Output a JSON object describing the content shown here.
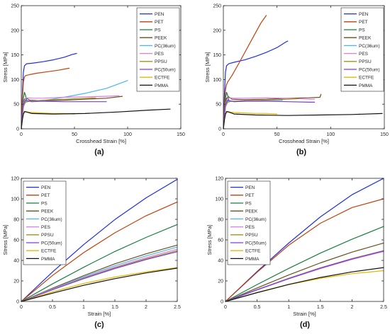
{
  "figure": {
    "colors": {
      "PEN": "#1f2ee0",
      "PET": "#c2410c",
      "PS": "#15803d",
      "PEEK": "#6b4f1d",
      "PC(36um)": "#4cb7e8",
      "PES": "#e07be6",
      "PPSU": "#9a9a12",
      "PC(50um)": "#7c3aed",
      "ECTFE": "#e6b800",
      "PMMA": "#111111"
    }
  },
  "chart_data": [
    {
      "panel_label": "(a)",
      "type": "line",
      "xlabel": "Crosshead Strain [%]",
      "ylabel": "Stress [MPa]",
      "xlim": [
        0,
        150
      ],
      "ylim": [
        0,
        250
      ],
      "xticks": [
        0,
        50,
        100,
        150
      ],
      "yticks": [
        0,
        50,
        100,
        150,
        200,
        250
      ],
      "xtick_labels": [
        "0",
        "50",
        "100",
        "150"
      ],
      "ytick_labels": [
        "0",
        "50",
        "100",
        "150",
        "200",
        "250"
      ],
      "grid": false,
      "legend": "top-right",
      "series": [
        {
          "name": "PEN",
          "x": [
            0,
            1,
            2,
            3,
            5,
            10,
            20,
            30,
            40,
            48,
            52
          ],
          "y": [
            0,
            70,
            115,
            128,
            132,
            133,
            136,
            140,
            145,
            151,
            153
          ]
        },
        {
          "name": "PET",
          "x": [
            0,
            1,
            2,
            3,
            4,
            8,
            15,
            25,
            35,
            45
          ],
          "y": [
            0,
            60,
            95,
            105,
            108,
            110,
            113,
            116,
            119,
            123
          ]
        },
        {
          "name": "PS",
          "x": [
            0,
            1,
            2,
            3,
            4,
            5
          ],
          "y": [
            0,
            35,
            62,
            74,
            68,
            58
          ]
        },
        {
          "name": "PEEK",
          "x": [
            0,
            1,
            2,
            3,
            5,
            8,
            20,
            40,
            60,
            80,
            95
          ],
          "y": [
            0,
            30,
            52,
            60,
            62,
            58,
            57,
            58,
            60,
            62,
            66
          ]
        },
        {
          "name": "PC(36um)",
          "x": [
            0,
            1,
            2,
            4,
            6,
            10,
            20,
            40,
            60,
            80,
            100
          ],
          "y": [
            0,
            28,
            48,
            56,
            56,
            55,
            57,
            64,
            72,
            82,
            98
          ]
        },
        {
          "name": "PES",
          "x": [
            0,
            1,
            2,
            4,
            6,
            10,
            20,
            40,
            60,
            80,
            92
          ],
          "y": [
            0,
            30,
            52,
            62,
            63,
            62,
            62,
            64,
            65,
            66,
            67
          ]
        },
        {
          "name": "PPSU",
          "x": [
            0,
            1,
            2,
            4,
            8,
            20,
            40,
            60,
            70
          ],
          "y": [
            0,
            25,
            45,
            54,
            56,
            58,
            60,
            62,
            63
          ]
        },
        {
          "name": "PC(50um)",
          "x": [
            0,
            1,
            2,
            4,
            6,
            10,
            20,
            40,
            60,
            80
          ],
          "y": [
            0,
            28,
            50,
            58,
            57,
            55,
            56,
            55,
            55,
            55
          ]
        },
        {
          "name": "ECTFE",
          "x": [
            0,
            1,
            2,
            4,
            6,
            10,
            20,
            30,
            40,
            50
          ],
          "y": [
            0,
            20,
            30,
            35,
            34,
            33,
            32,
            31,
            31,
            30
          ]
        },
        {
          "name": "PMMA",
          "x": [
            0,
            1,
            2,
            3,
            5,
            10,
            30,
            60,
            90,
            120,
            140
          ],
          "y": [
            0,
            18,
            30,
            35,
            34,
            31,
            30,
            31,
            34,
            38,
            40
          ]
        }
      ]
    },
    {
      "panel_label": "(b)",
      "type": "line",
      "xlabel": "Crosshead Strain [%]",
      "ylabel": "Stress [MPa]",
      "xlim": [
        0,
        150
      ],
      "ylim": [
        0,
        250
      ],
      "xticks": [
        0,
        50,
        100,
        150
      ],
      "yticks": [
        0,
        50,
        100,
        150,
        200,
        250
      ],
      "xtick_labels": [
        "0",
        "50",
        "100",
        "150"
      ],
      "ytick_labels": [
        "0",
        "50",
        "100",
        "150",
        "200",
        "250"
      ],
      "grid": false,
      "legend": "top-right",
      "series": [
        {
          "name": "PEN",
          "x": [
            0,
            1,
            2,
            3,
            5,
            10,
            20,
            30,
            40,
            50,
            58,
            60
          ],
          "y": [
            0,
            70,
            115,
            128,
            132,
            135,
            140,
            147,
            155,
            165,
            176,
            178
          ]
        },
        {
          "name": "PET",
          "x": [
            0,
            1,
            2,
            3,
            4,
            8,
            15,
            25,
            35,
            40
          ],
          "y": [
            0,
            50,
            80,
            90,
            95,
            108,
            135,
            175,
            215,
            230
          ]
        },
        {
          "name": "PS",
          "x": [
            0,
            1,
            2,
            3,
            4,
            5
          ],
          "y": [
            0,
            35,
            62,
            74,
            68,
            58
          ]
        },
        {
          "name": "PEEK",
          "x": [
            0,
            1,
            2,
            3,
            5,
            8,
            20,
            40,
            60,
            80,
            90,
            91
          ],
          "y": [
            0,
            30,
            52,
            62,
            65,
            60,
            59,
            60,
            62,
            63,
            64,
            70
          ]
        },
        {
          "name": "PC(36um)",
          "x": [
            0,
            1,
            2,
            4,
            6,
            10,
            20,
            40,
            55
          ],
          "y": [
            0,
            28,
            48,
            56,
            56,
            55,
            56,
            58,
            58
          ]
        },
        {
          "name": "PES",
          "x": [
            0,
            1,
            2,
            4,
            6,
            10,
            20,
            40,
            60,
            80,
            85
          ],
          "y": [
            0,
            30,
            52,
            62,
            63,
            62,
            62,
            63,
            62,
            60,
            60
          ]
        },
        {
          "name": "PPSU",
          "x": [
            0,
            1,
            2,
            4,
            8,
            20,
            40,
            60,
            70
          ],
          "y": [
            0,
            25,
            45,
            54,
            56,
            57,
            58,
            60,
            61
          ]
        },
        {
          "name": "PC(50um)",
          "x": [
            0,
            1,
            2,
            4,
            6,
            10,
            20,
            40,
            60,
            80,
            85
          ],
          "y": [
            0,
            28,
            50,
            58,
            57,
            55,
            56,
            56,
            55,
            54,
            54
          ]
        },
        {
          "name": "ECTFE",
          "x": [
            0,
            1,
            2,
            4,
            6,
            10,
            20,
            30,
            40,
            50
          ],
          "y": [
            0,
            20,
            30,
            35,
            34,
            33,
            32,
            31,
            31,
            30
          ]
        },
        {
          "name": "PMMA",
          "x": [
            0,
            1,
            2,
            3,
            5,
            10,
            30,
            60,
            90,
            120,
            148
          ],
          "y": [
            0,
            18,
            30,
            35,
            34,
            30,
            28,
            27,
            28,
            29,
            31
          ]
        }
      ]
    },
    {
      "panel_label": "(c)",
      "type": "line",
      "xlabel": "Strain [%]",
      "ylabel": "Stress [MPa]",
      "xlim": [
        0,
        2.5
      ],
      "ylim": [
        0,
        120
      ],
      "xticks": [
        0,
        0.5,
        1,
        1.5,
        2,
        2.5
      ],
      "yticks": [
        0,
        20,
        40,
        60,
        80,
        100,
        120
      ],
      "xtick_labels": [
        "0",
        "0.5",
        "1",
        "1.5",
        "2",
        "2.5"
      ],
      "ytick_labels": [
        "0",
        "20",
        "40",
        "60",
        "80",
        "100",
        "120"
      ],
      "grid": false,
      "legend": "top-left",
      "series": [
        {
          "name": "PEN",
          "x": [
            0,
            0.5,
            1,
            1.5,
            2,
            2.5
          ],
          "y": [
            0,
            28.7,
            55.4,
            79.8,
            101,
            119
          ]
        },
        {
          "name": "PET",
          "x": [
            0,
            0.5,
            1,
            1.5,
            2,
            2.5
          ],
          "y": [
            0,
            25.3,
            47.6,
            66.9,
            83.5,
            97
          ]
        },
        {
          "name": "PS",
          "x": [
            0,
            0.5,
            1,
            1.5,
            2,
            2.5
          ],
          "y": [
            0,
            17.1,
            33.3,
            48.7,
            62.4,
            75
          ]
        },
        {
          "name": "PEEK",
          "x": [
            0,
            0.5,
            1,
            1.5,
            2,
            2.5
          ],
          "y": [
            0,
            12.9,
            25.2,
            36.7,
            46.4,
            55
          ]
        },
        {
          "name": "PC(36um)",
          "x": [
            0,
            0.5,
            1,
            1.5,
            2,
            2.5
          ],
          "y": [
            0,
            12.3,
            24.1,
            34.9,
            44.4,
            53
          ]
        },
        {
          "name": "PES",
          "x": [
            0,
            0.5,
            1,
            1.5,
            2,
            2.5
          ],
          "y": [
            0,
            11.9,
            23.2,
            33.5,
            42.6,
            51
          ]
        },
        {
          "name": "PPSU",
          "x": [
            0,
            0.5,
            1,
            1.5,
            2,
            2.5
          ],
          "y": [
            0,
            11.6,
            22.7,
            32.7,
            41.6,
            49.5
          ]
        },
        {
          "name": "PC(50um)",
          "x": [
            0,
            0.5,
            1,
            1.5,
            2,
            2.5
          ],
          "y": [
            0,
            11.4,
            22.2,
            32,
            40.8,
            48.5
          ]
        },
        {
          "name": "ECTFE",
          "x": [
            0,
            0.5,
            1,
            1.5,
            2,
            2.5
          ],
          "y": [
            0,
            9.3,
            17.5,
            23.8,
            28.8,
            33
          ]
        },
        {
          "name": "PMMA",
          "x": [
            0,
            0.5,
            1,
            1.5,
            2,
            2.5
          ],
          "y": [
            0,
            8.1,
            15.7,
            22.2,
            27.8,
            32.5
          ]
        }
      ]
    },
    {
      "panel_label": "(d)",
      "type": "line",
      "xlabel": "Strain [%]",
      "ylabel": "Stress [MPa]",
      "xlim": [
        0,
        2.5
      ],
      "ylim": [
        0,
        120
      ],
      "xticks": [
        0,
        0.5,
        1,
        1.5,
        2,
        2.5
      ],
      "yticks": [
        0,
        20,
        40,
        60,
        80,
        100,
        120
      ],
      "xtick_labels": [
        "0",
        "0.5",
        "1",
        "1.5",
        "2",
        "2.5"
      ],
      "ytick_labels": [
        "0",
        "20",
        "40",
        "60",
        "80",
        "100",
        "120"
      ],
      "grid": false,
      "legend": "top-left",
      "series": [
        {
          "name": "PEN",
          "x": [
            0,
            0.5,
            1,
            1.5,
            2,
            2.5
          ],
          "y": [
            0,
            29.2,
            56.9,
            82.4,
            104,
            120
          ]
        },
        {
          "name": "PET",
          "x": [
            0,
            0.5,
            1,
            1.5,
            2,
            2.5
          ],
          "y": [
            0,
            28.5,
            54.8,
            76.2,
            91.5,
            100
          ]
        },
        {
          "name": "PS",
          "x": [
            0,
            0.5,
            1,
            1.5,
            2,
            2.5
          ],
          "y": [
            0,
            16.5,
            32.2,
            47.1,
            60.6,
            73
          ]
        },
        {
          "name": "PEEK",
          "x": [
            0,
            0.5,
            1,
            1.5,
            2,
            2.5
          ],
          "y": [
            0,
            13.2,
            25.8,
            37.6,
            48.1,
            57
          ]
        },
        {
          "name": "PC(36um)",
          "x": [
            0,
            0.5,
            1,
            1.5,
            2,
            2.5
          ],
          "y": [
            0,
            11.4,
            22.2,
            32.2,
            41.2,
            49
          ]
        },
        {
          "name": "PES",
          "x": [
            0,
            0.5,
            1,
            1.5,
            2,
            2.5
          ],
          "y": [
            0,
            11.3,
            22,
            32,
            41,
            48.7
          ]
        },
        {
          "name": "PPSU",
          "x": [
            0,
            0.5,
            1,
            1.5,
            2,
            2.5
          ],
          "y": [
            0,
            11.6,
            22.6,
            32.8,
            41.8,
            49.5
          ]
        },
        {
          "name": "PC(50um)",
          "x": [
            0,
            0.5,
            1,
            1.5,
            2,
            2.5
          ],
          "y": [
            0,
            11.4,
            22.3,
            32.4,
            41.4,
            49.2
          ]
        },
        {
          "name": "ECTFE",
          "x": [
            0,
            0.5,
            1,
            1.5,
            2,
            2.5
          ],
          "y": [
            0,
            8.5,
            16.4,
            22.5,
            27.1,
            30
          ]
        },
        {
          "name": "PMMA",
          "x": [
            0,
            0.5,
            1,
            1.5,
            2,
            2.5
          ],
          "y": [
            0,
            8.6,
            16.6,
            23.4,
            28.8,
            33
          ]
        }
      ]
    }
  ]
}
